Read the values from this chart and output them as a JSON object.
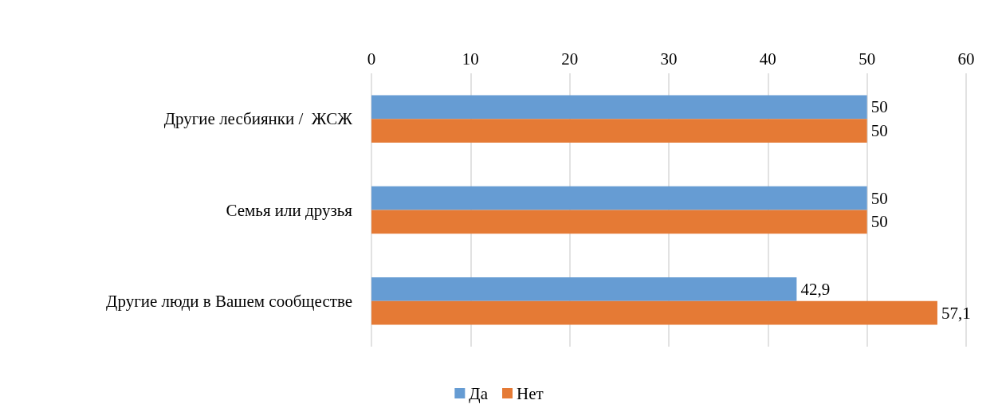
{
  "chart_data": {
    "type": "bar",
    "orientation": "horizontal",
    "categories": [
      "Другие лесбиянки /  ЖСЖ",
      "Семья или друзья",
      "Другие люди в Вашем сообществе"
    ],
    "series": [
      {
        "name": "Да",
        "color": "#669cd3",
        "values": [
          50,
          50,
          42.9
        ],
        "value_labels": [
          "50",
          "50",
          "42,9"
        ]
      },
      {
        "name": "Нет",
        "color": "#e57a35",
        "values": [
          50,
          50,
          57.1
        ],
        "value_labels": [
          "50",
          "50",
          "57,1"
        ]
      }
    ],
    "xlim": [
      0,
      60
    ],
    "xticks": [
      0,
      10,
      20,
      30,
      40,
      50,
      60
    ],
    "grid": "x",
    "legend": "bottom"
  }
}
